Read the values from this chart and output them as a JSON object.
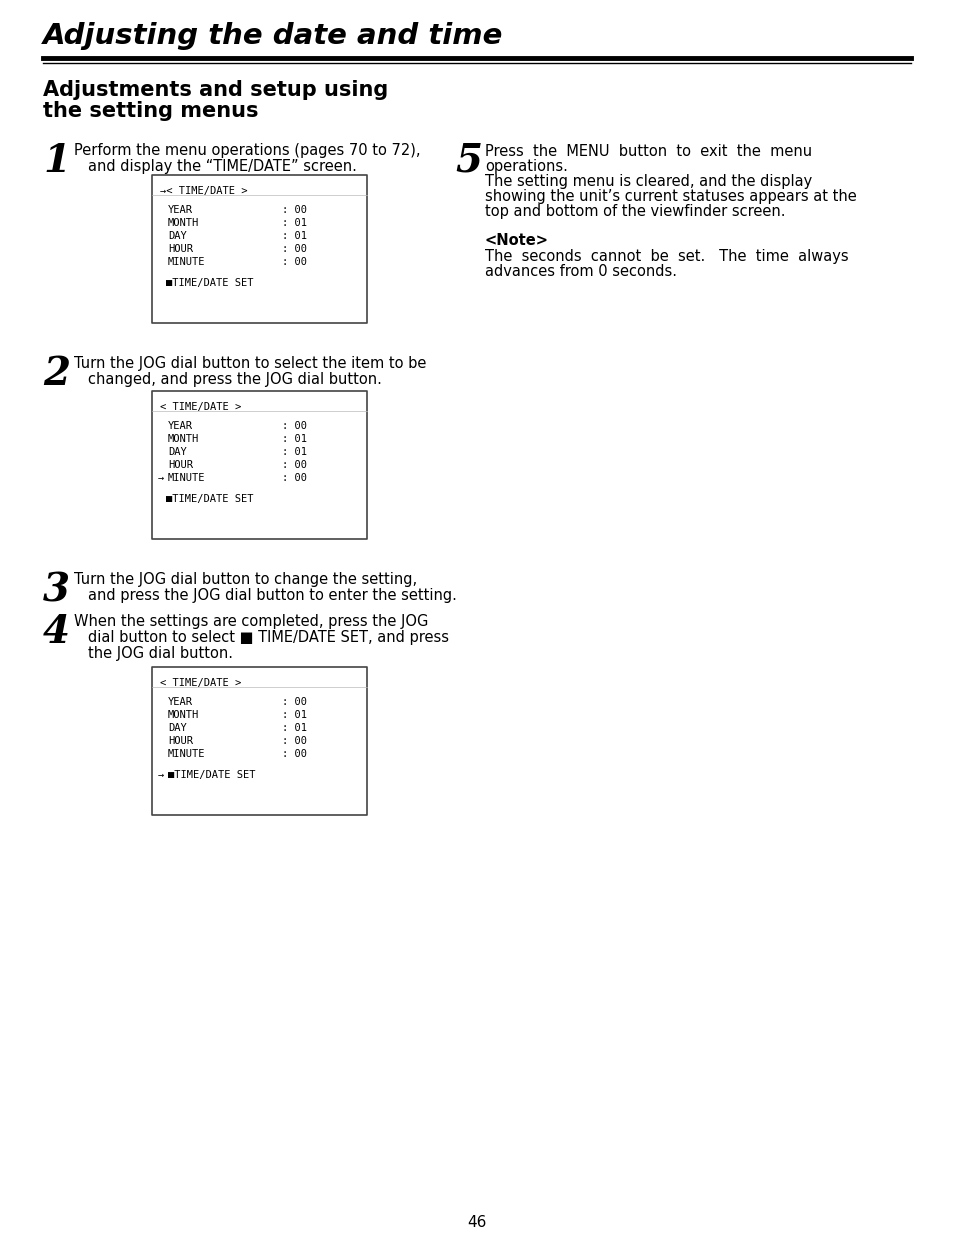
{
  "title": "Adjusting the date and time",
  "bg_color": "#ffffff",
  "text_color": "#000000",
  "page_number": "46",
  "screen1_header": "→< TIME/DATE >",
  "screen1_lines": [
    "YEAR",
    "MONTH",
    "DAY",
    "HOUR",
    "MINUTE"
  ],
  "screen1_values": [
    ": 00",
    ": 01",
    ": 01",
    ": 00",
    ": 00"
  ],
  "screen1_arrow_line": -1,
  "screen1_footer": "■TIME/DATE SET",
  "screen1_footer_arrow": false,
  "screen2_header": "< TIME/DATE >",
  "screen2_lines": [
    "YEAR",
    "MONTH",
    "DAY",
    "HOUR",
    "MINUTE"
  ],
  "screen2_values": [
    ": 00",
    ": 01",
    ": 01",
    ": 00",
    ": 00"
  ],
  "screen2_arrow_line": 4,
  "screen2_footer": "■TIME/DATE SET",
  "screen2_footer_arrow": false,
  "screen3_header": "< TIME/DATE >",
  "screen3_lines": [
    "YEAR",
    "MONTH",
    "DAY",
    "HOUR",
    "MINUTE"
  ],
  "screen3_values": [
    ": 00",
    ": 01",
    ": 01",
    ": 00",
    ": 00"
  ],
  "screen3_arrow_line": -1,
  "screen3_footer": "■TIME/DATE SET",
  "screen3_footer_arrow": true
}
